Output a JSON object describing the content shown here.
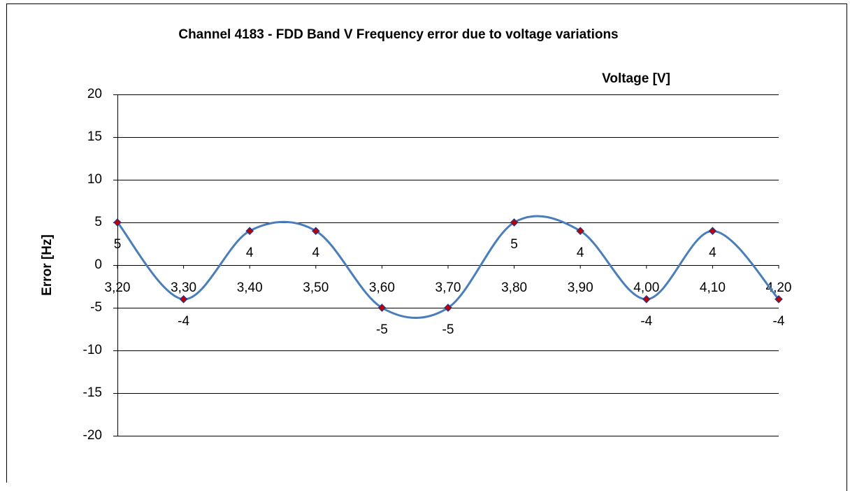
{
  "chart_data": {
    "type": "line",
    "title": "Channel 4183 - FDD Band V Frequency error due to voltage variations",
    "x_label": "Voltage [V]",
    "y_label": "Error [Hz]",
    "categories": [
      "3,20",
      "3,30",
      "3,40",
      "3,50",
      "3,60",
      "3,70",
      "3,80",
      "3,90",
      "4,00",
      "4,10",
      "4,20"
    ],
    "values": [
      5,
      -4,
      4,
      4,
      -5,
      -5,
      5,
      4,
      -4,
      4,
      -4
    ],
    "color": "#4a7ebb",
    "marker_color": "#c00000",
    "smooth": true,
    "ylim": [
      -20,
      20
    ],
    "yticks": [
      20,
      15,
      10,
      5,
      0,
      -5,
      -10,
      -15,
      -20
    ],
    "grid": true
  }
}
